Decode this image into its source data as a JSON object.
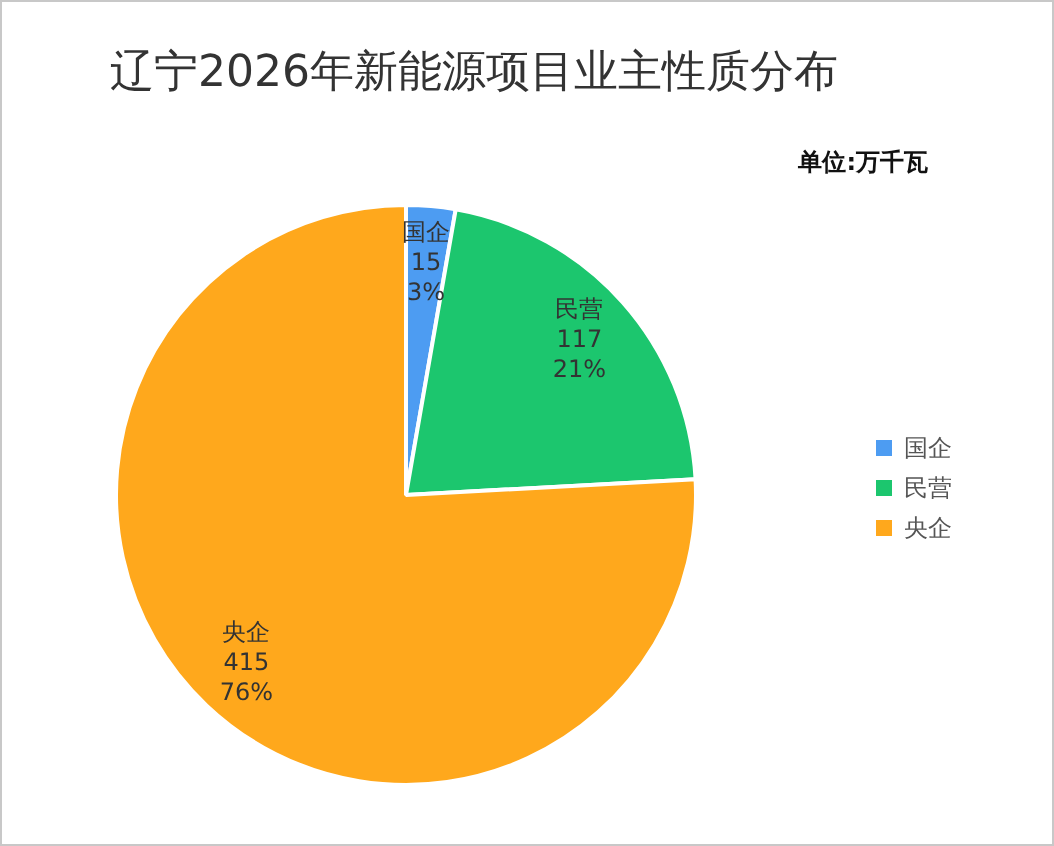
{
  "chart_data": {
    "type": "pie",
    "title": "辽宁2026年新能源项目业主性质分布",
    "annotations": [
      "单位:万千瓦"
    ],
    "categories": [
      "国企",
      "民营",
      "央企"
    ],
    "values": [
      15,
      117,
      415
    ],
    "colors": [
      "#4d9cf2",
      "#1cc66e",
      "#ffa81c"
    ],
    "value_labels": [
      "国企\n15\n3%",
      "民营\n117\n21%",
      "央企\n415\n76%"
    ],
    "legend": "right"
  }
}
